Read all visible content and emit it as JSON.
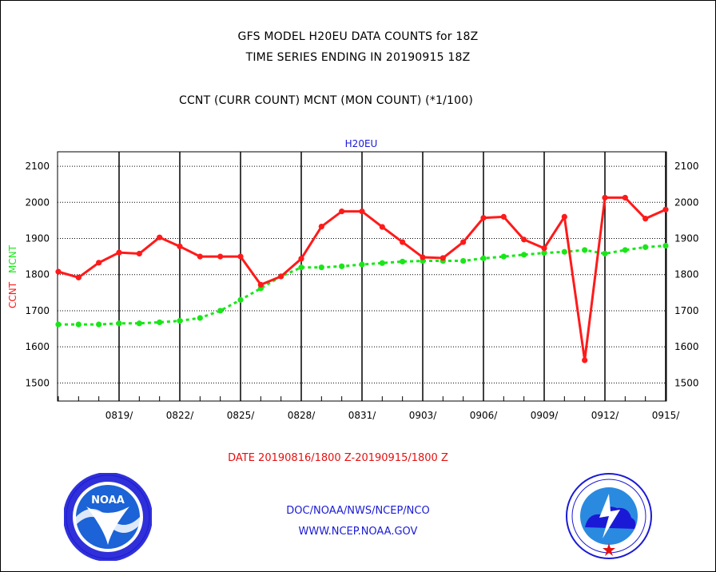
{
  "header": {
    "line1": "GFS MODEL H20EU DATA COUNTS for 18Z",
    "line2": "TIME SERIES ENDING IN 20190915 18Z",
    "line3": "CCNT (CURR COUNT) MCNT (MON COUNT) (*1/100)"
  },
  "chart_data": {
    "type": "line",
    "title": "H20EU",
    "ylabel_series1": "CCNT",
    "ylabel_series2": "MCNT",
    "ylim": [
      1450,
      2140
    ],
    "yticks": [
      1500,
      1600,
      1700,
      1800,
      1900,
      2000,
      2100
    ],
    "x_tick_labels": [
      "0819/",
      "0822/",
      "0825/",
      "0828/",
      "0831/",
      "0903/",
      "0906/",
      "0909/",
      "0912/",
      "0915/"
    ],
    "x_day_range": [
      0,
      30
    ],
    "grid": true,
    "series": [
      {
        "name": "CCNT",
        "color": "#ff1a1a",
        "days": [
          0,
          1,
          2,
          3,
          4,
          5,
          6,
          7,
          8,
          9,
          10,
          11,
          12,
          13,
          14,
          15,
          16,
          17,
          18,
          19,
          20,
          21,
          22,
          23,
          24,
          25,
          26,
          27,
          28,
          29,
          30
        ],
        "values": [
          1808,
          1792,
          1833,
          1861,
          1858,
          1903,
          1878,
          1850,
          1850,
          1850,
          1772,
          1795,
          1844,
          1933,
          1975,
          1975,
          1932,
          1890,
          1848,
          1846,
          1890,
          1957,
          1960,
          1897,
          1873,
          1960,
          1563,
          2013,
          2013,
          1955,
          1980
        ]
      },
      {
        "name": "MCNT",
        "color": "#19e619",
        "days": [
          0,
          1,
          2,
          3,
          4,
          5,
          6,
          7,
          8,
          9,
          10,
          11,
          12,
          13,
          14,
          15,
          16,
          17,
          18,
          19,
          20,
          21,
          22,
          23,
          24,
          25,
          26,
          27,
          28,
          29,
          30
        ],
        "values": [
          1662,
          1662,
          1662,
          1665,
          1665,
          1668,
          1672,
          1680,
          1700,
          1730,
          1762,
          1795,
          1820,
          1820,
          1823,
          1828,
          1832,
          1836,
          1838,
          1838,
          1838,
          1845,
          1850,
          1855,
          1860,
          1863,
          1868,
          1858,
          1868,
          1876,
          1880
        ]
      }
    ]
  },
  "footer": {
    "date_range": "DATE 20190816/1800 Z-20190915/1800 Z",
    "org": "DOC/NOAA/NWS/NCEP/NCO",
    "url": "WWW.NCEP.NOAA.GOV"
  },
  "logos": {
    "left": "noaa-logo",
    "right": "nws-logo"
  }
}
